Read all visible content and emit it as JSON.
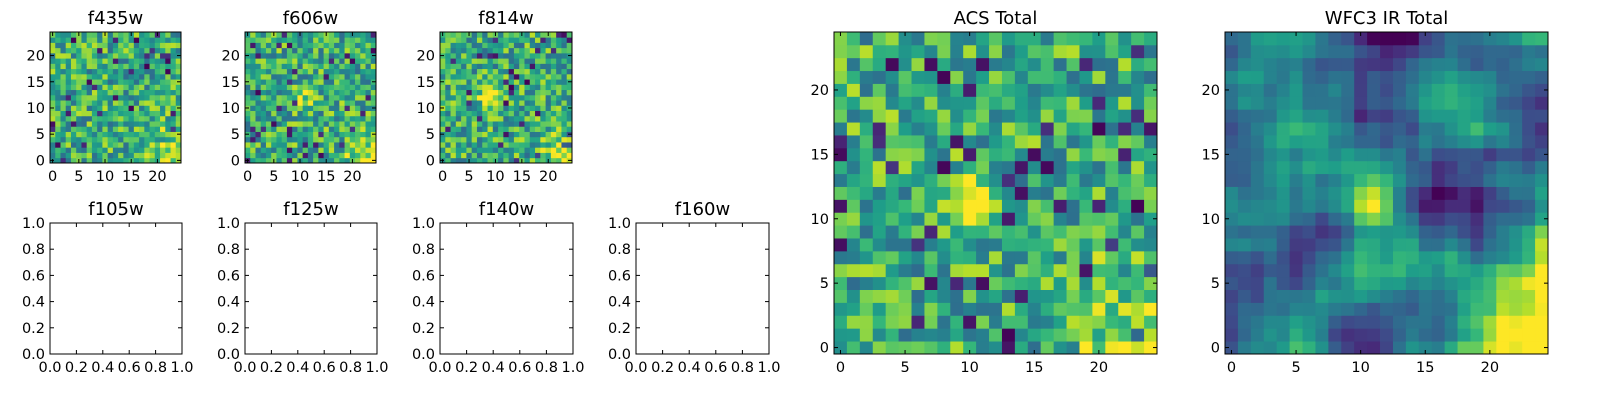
{
  "colormap": "viridis",
  "chart_data": [
    {
      "type": "heatmap",
      "title": "f435w",
      "grid": [
        25,
        25
      ],
      "xticks": [
        "0",
        "5",
        "10",
        "15",
        "20"
      ],
      "yticks": [
        "0",
        "5",
        "10",
        "15",
        "20"
      ],
      "xlim": [
        -0.5,
        24.5
      ],
      "ylim": [
        -0.5,
        24.5
      ],
      "texture": "noisy",
      "brightspot": null,
      "seed": 11
    },
    {
      "type": "heatmap",
      "title": "f606w",
      "grid": [
        25,
        25
      ],
      "xticks": [
        "0",
        "5",
        "10",
        "15",
        "20"
      ],
      "yticks": [
        "0",
        "5",
        "10",
        "15",
        "20"
      ],
      "xlim": [
        -0.5,
        24.5
      ],
      "ylim": [
        -0.5,
        24.5
      ],
      "texture": "noisy",
      "brightspot": [
        11,
        12
      ],
      "seed": 23
    },
    {
      "type": "heatmap",
      "title": "f814w",
      "grid": [
        25,
        25
      ],
      "xticks": [
        "0",
        "5",
        "10",
        "15",
        "20"
      ],
      "yticks": [
        "0",
        "5",
        "10",
        "15",
        "20"
      ],
      "xlim": [
        -0.5,
        24.5
      ],
      "ylim": [
        -0.5,
        24.5
      ],
      "texture": "noisy",
      "brightspot": [
        9,
        12
      ],
      "seed": 37
    },
    {
      "type": "empty",
      "title": "f105w",
      "xticks": [
        "0.0",
        "0.2",
        "0.4",
        "0.6",
        "0.8",
        "1.0"
      ],
      "yticks": [
        "0.0",
        "0.2",
        "0.4",
        "0.6",
        "0.8",
        "1.0"
      ],
      "xlim": [
        0,
        1
      ],
      "ylim": [
        0,
        1
      ]
    },
    {
      "type": "empty",
      "title": "f125w",
      "xticks": [
        "0.0",
        "0.2",
        "0.4",
        "0.6",
        "0.8",
        "1.0"
      ],
      "yticks": [
        "0.0",
        "0.2",
        "0.4",
        "0.6",
        "0.8",
        "1.0"
      ],
      "xlim": [
        0,
        1
      ],
      "ylim": [
        0,
        1
      ]
    },
    {
      "type": "empty",
      "title": "f140w",
      "xticks": [
        "0.0",
        "0.2",
        "0.4",
        "0.6",
        "0.8",
        "1.0"
      ],
      "yticks": [
        "0.0",
        "0.2",
        "0.4",
        "0.6",
        "0.8",
        "1.0"
      ],
      "xlim": [
        0,
        1
      ],
      "ylim": [
        0,
        1
      ]
    },
    {
      "type": "empty",
      "title": "f160w",
      "xticks": [
        "0.0",
        "0.2",
        "0.4",
        "0.6",
        "0.8",
        "1.0"
      ],
      "yticks": [
        "0.0",
        "0.2",
        "0.4",
        "0.6",
        "0.8",
        "1.0"
      ],
      "xlim": [
        0,
        1
      ],
      "ylim": [
        0,
        1
      ]
    },
    {
      "type": "heatmap",
      "title": "ACS Total",
      "grid": [
        25,
        25
      ],
      "xticks": [
        "0",
        "5",
        "10",
        "15",
        "20"
      ],
      "yticks": [
        "0",
        "5",
        "10",
        "15",
        "20"
      ],
      "xlim": [
        -0.5,
        24.5
      ],
      "ylim": [
        -0.5,
        24.5
      ],
      "texture": "noisy",
      "brightspot": [
        10,
        11
      ],
      "seed": 59
    },
    {
      "type": "heatmap",
      "title": "WFC3 IR Total",
      "grid": [
        25,
        25
      ],
      "xticks": [
        "0",
        "5",
        "10",
        "15",
        "20"
      ],
      "yticks": [
        "0",
        "5",
        "10",
        "15",
        "20"
      ],
      "xlim": [
        -0.5,
        24.5
      ],
      "ylim": [
        -0.5,
        24.5
      ],
      "texture": "smooth",
      "brightspot": [
        11,
        11
      ],
      "seed": 71
    }
  ]
}
